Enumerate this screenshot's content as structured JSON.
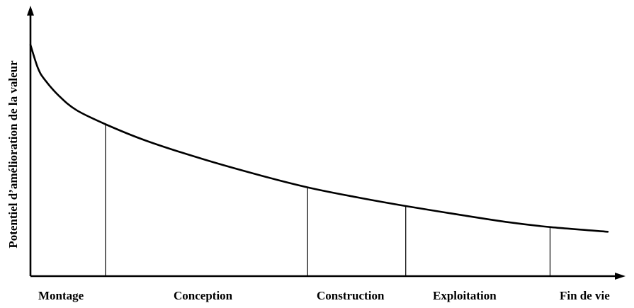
{
  "chart_data": {
    "type": "line",
    "title": "",
    "xlabel": "",
    "ylabel": "Potentiel d’amélioration de la valeur",
    "phases": [
      "Montage",
      "Conception",
      "Construction",
      "Exploitation",
      "Fin de vie"
    ],
    "phase_boundaries": [
      0.13,
      0.48,
      0.65,
      0.9
    ],
    "series": [
      {
        "x": [
          0.0,
          0.013,
          0.025,
          0.05,
          0.08,
          0.13,
          0.2,
          0.3,
          0.4,
          0.48,
          0.56,
          0.65,
          0.75,
          0.83,
          0.9,
          1.0
        ],
        "values": [
          0.99,
          0.89,
          0.84,
          0.77,
          0.71,
          0.65,
          0.58,
          0.5,
          0.43,
          0.38,
          0.34,
          0.3,
          0.26,
          0.23,
          0.21,
          0.19
        ]
      }
    ],
    "xlim": [
      0,
      1
    ],
    "ylim": [
      0,
      1
    ],
    "grid": false,
    "legend": "none",
    "colors": {
      "curve": "#000000",
      "axes": "#000000"
    }
  }
}
